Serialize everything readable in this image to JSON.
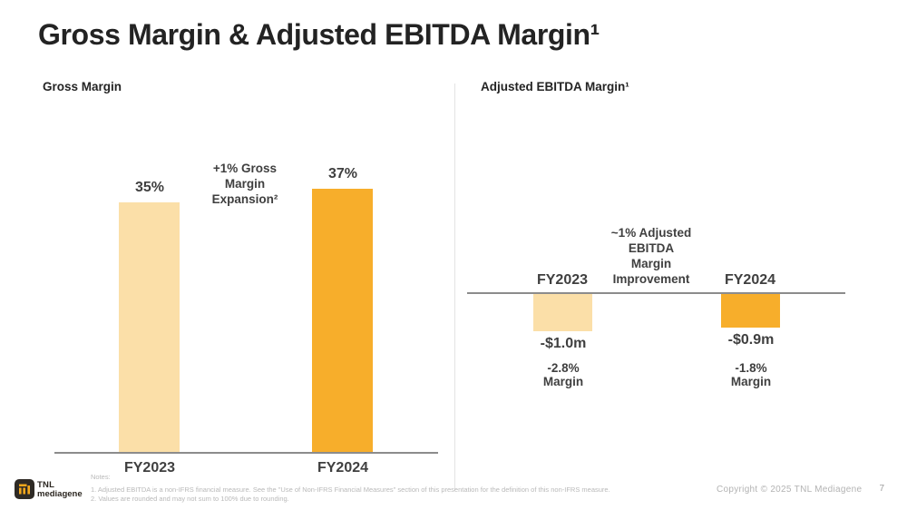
{
  "slide": {
    "title": "Gross Margin & Adjusted EBITDA Margin¹",
    "footer": {
      "copyright": "Copyright © 2025 TNL Mediagene",
      "page_number": "7",
      "logo_line1": "TNL",
      "logo_line2": "mediagene",
      "logo_icon": "tnl-mediagene-mark"
    },
    "notes": {
      "label": "Notes:",
      "line1": "1. Adjusted EBITDA is a non-IFRS financial measure. See the \"Use of Non-IFRS Financial Measures\" section of this presentation for the definition of this non-IFRS measure.",
      "line2": "2. Values are rounded and may not sum to 100% due to rounding."
    }
  },
  "colors": {
    "bar_light": "#FBDFA8",
    "bar_orange": "#F7AE2B",
    "axis_gray": "#8C8C8C",
    "text_dark": "#3F3F3F",
    "title_dark": "#232323"
  },
  "chart_data": [
    {
      "type": "bar",
      "title": "Gross Margin",
      "categories": [
        "FY2023",
        "FY2024"
      ],
      "values": [
        35,
        37
      ],
      "unit": "%",
      "data_labels": [
        "35%",
        "37%"
      ],
      "bar_colors": [
        "#FBDFA8",
        "#F7AE2B"
      ],
      "annotation": "+1% Gross Margin Expansion²",
      "annotation_lines": [
        "+1% Gross",
        "Margin",
        "Expansion²"
      ],
      "ylim": [
        0,
        40
      ],
      "baseline": "bottom",
      "grid": false,
      "legend": false
    },
    {
      "type": "bar",
      "title": "Adjusted EBITDA Margin¹",
      "categories": [
        "FY2023",
        "FY2024"
      ],
      "values": [
        -1.0,
        -0.9
      ],
      "unit": "$m",
      "data_labels": [
        "-$1.0m",
        "-$0.9m"
      ],
      "margin_lines": [
        [
          "-2.8%",
          "Margin"
        ],
        [
          "-1.8%",
          "Margin"
        ]
      ],
      "bar_colors": [
        "#FBDFA8",
        "#F7AE2B"
      ],
      "annotation": "~1% Adjusted EBITDA Margin Improvement",
      "annotation_lines": [
        "~1% Adjusted",
        "EBITDA",
        "Margin",
        "Improvement"
      ],
      "ylim": [
        -1.2,
        0
      ],
      "baseline": "top",
      "grid": false,
      "legend": false
    }
  ]
}
